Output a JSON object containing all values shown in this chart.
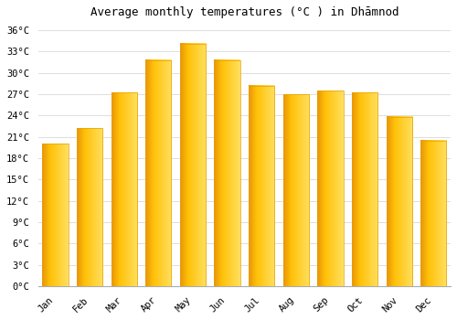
{
  "title": "Average monthly temperatures (°C ) in Dhāmnod",
  "months": [
    "Jan",
    "Feb",
    "Mar",
    "Apr",
    "May",
    "Jun",
    "Jul",
    "Aug",
    "Sep",
    "Oct",
    "Nov",
    "Dec"
  ],
  "values": [
    20.0,
    22.2,
    27.2,
    31.8,
    34.1,
    31.8,
    28.2,
    27.0,
    27.5,
    27.2,
    23.8,
    20.5
  ],
  "bar_color_main": "#FFC107",
  "bar_color_left": "#E8A000",
  "bar_color_right": "#FFD54F",
  "background_color": "#FFFFFF",
  "grid_color": "#DDDDDD",
  "ytick_labels": [
    "0°C",
    "3°C",
    "6°C",
    "9°C",
    "12°C",
    "15°C",
    "18°C",
    "21°C",
    "24°C",
    "27°C",
    "30°C",
    "33°C",
    "36°C"
  ],
  "ytick_values": [
    0,
    3,
    6,
    9,
    12,
    15,
    18,
    21,
    24,
    27,
    30,
    33,
    36
  ],
  "ylim": [
    0,
    37
  ],
  "title_fontsize": 9,
  "tick_fontsize": 7.5,
  "figsize": [
    5.0,
    3.5
  ],
  "dpi": 100
}
